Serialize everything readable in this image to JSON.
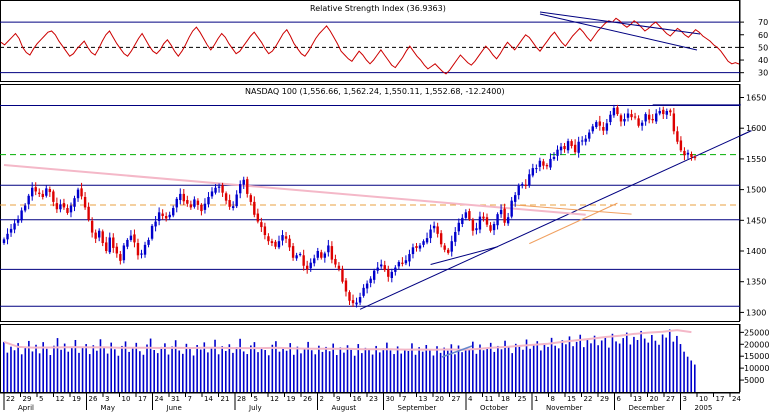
{
  "chart_data": [
    {
      "type": "line",
      "title": "Relative Strength Index (36.9363)",
      "ylim": [
        25,
        78
      ],
      "ticks": [
        {
          "value": 70,
          "label": "70"
        },
        {
          "value": 60,
          "label": "60"
        },
        {
          "value": 50,
          "label": "50"
        },
        {
          "value": 40,
          "label": "40"
        },
        {
          "value": 30,
          "label": "30"
        }
      ],
      "reference_lines": [
        {
          "value": 70,
          "color": "#000080",
          "dash": false
        },
        {
          "value": 50,
          "color": "#000000",
          "dash": true
        },
        {
          "value": 30,
          "color": "#000080",
          "dash": false
        }
      ],
      "series": [
        {
          "color": "#cc0000",
          "values": [
            54,
            52,
            55,
            58,
            61,
            57,
            50,
            46,
            44,
            49,
            53,
            56,
            59,
            62,
            63,
            60,
            55,
            51,
            47,
            43,
            45,
            49,
            52,
            55,
            50,
            46,
            44,
            49,
            55,
            60,
            63,
            58,
            53,
            49,
            45,
            43,
            47,
            52,
            57,
            61,
            56,
            51,
            47,
            45,
            48,
            53,
            56,
            52,
            47,
            43,
            47,
            52,
            58,
            63,
            66,
            62,
            57,
            52,
            48,
            52,
            57,
            61,
            58,
            53,
            49,
            45,
            47,
            51,
            55,
            59,
            62,
            58,
            54,
            49,
            45,
            47,
            51,
            56,
            61,
            64,
            59,
            53,
            49,
            45,
            43,
            47,
            52,
            57,
            61,
            64,
            67,
            63,
            58,
            53,
            47,
            44,
            41,
            39,
            43,
            47,
            44,
            40,
            37,
            40,
            44,
            48,
            44,
            40,
            36,
            34,
            38,
            42,
            47,
            51,
            47,
            43,
            40,
            36,
            33,
            35,
            37,
            34,
            31,
            29,
            32,
            36,
            40,
            44,
            41,
            38,
            36,
            39,
            43,
            47,
            51,
            48,
            44,
            41,
            45,
            50,
            54,
            51,
            48,
            52,
            56,
            60,
            58,
            54,
            50,
            47,
            51,
            55,
            59,
            62,
            58,
            54,
            51,
            55,
            59,
            62,
            65,
            62,
            58,
            55,
            59,
            63,
            66,
            69,
            71,
            70,
            73,
            71,
            68,
            66,
            68,
            71,
            69,
            66,
            63,
            65,
            68,
            70,
            67,
            64,
            61,
            59,
            62,
            65,
            63,
            60,
            58,
            61,
            64,
            62,
            59,
            57,
            55,
            52,
            50,
            47,
            43,
            39,
            37,
            38,
            36.9
          ]
        }
      ]
    },
    {
      "type": "candlestick",
      "title": "NASDAQ 100 (1,556.66, 1,562.24, 1,550.11, 1,552.68, -12.2400)",
      "ylim": [
        1286,
        1672
      ],
      "ticks": [
        {
          "value": 1650,
          "label": "1650"
        },
        {
          "value": 1600,
          "label": "1600"
        },
        {
          "value": 1550,
          "label": "1550"
        },
        {
          "value": 1500,
          "label": "1500"
        },
        {
          "value": 1450,
          "label": "1450"
        },
        {
          "value": 1400,
          "label": "1400"
        },
        {
          "value": 1350,
          "label": "1350"
        },
        {
          "value": 1300,
          "label": "1300"
        }
      ],
      "horizontal_lines": [
        {
          "value": 1637,
          "color": "#000080",
          "dash": false
        },
        {
          "value": 1557,
          "color": "#00b000",
          "dash": true
        },
        {
          "value": 1507,
          "color": "#000080",
          "dash": false
        },
        {
          "value": 1475,
          "color": "#e8a040",
          "dash": true
        },
        {
          "value": 1451,
          "color": "#000080",
          "dash": false
        },
        {
          "value": 1370,
          "color": "#000080",
          "dash": false
        },
        {
          "value": 1310,
          "color": "#000080",
          "dash": false
        }
      ],
      "series": [
        {
          "name": "close",
          "values": [
            1419,
            1428,
            1436,
            1445,
            1452,
            1466,
            1474,
            1490,
            1503,
            1497,
            1493,
            1488,
            1502,
            1496,
            1480,
            1468,
            1476,
            1471,
            1462,
            1474,
            1486,
            1500,
            1489,
            1471,
            1451,
            1430,
            1420,
            1433,
            1413,
            1400,
            1422,
            1405,
            1396,
            1384,
            1409,
            1418,
            1425,
            1414,
            1393,
            1396,
            1410,
            1418,
            1441,
            1448,
            1463,
            1457,
            1453,
            1459,
            1470,
            1485,
            1493,
            1481,
            1477,
            1471,
            1484,
            1475,
            1465,
            1477,
            1488,
            1497,
            1503,
            1505,
            1495,
            1482,
            1472,
            1473,
            1492,
            1509,
            1516,
            1493,
            1480,
            1459,
            1448,
            1439,
            1426,
            1416,
            1413,
            1407,
            1416,
            1426,
            1420,
            1406,
            1389,
            1393,
            1395,
            1376,
            1370,
            1381,
            1388,
            1400,
            1389,
            1396,
            1409,
            1386,
            1378,
            1371,
            1350,
            1334,
            1319,
            1315,
            1316,
            1325,
            1340,
            1347,
            1355,
            1368,
            1373,
            1378,
            1369,
            1358,
            1366,
            1373,
            1382,
            1379,
            1385,
            1395,
            1406,
            1405,
            1409,
            1416,
            1421,
            1435,
            1441,
            1428,
            1411,
            1402,
            1397,
            1416,
            1431,
            1446,
            1454,
            1463,
            1452,
            1433,
            1437,
            1456,
            1453,
            1443,
            1433,
            1444,
            1460,
            1467,
            1446,
            1455,
            1482,
            1491,
            1506,
            1509,
            1506,
            1525,
            1535,
            1535,
            1547,
            1539,
            1538,
            1550,
            1553,
            1565,
            1570,
            1566,
            1579,
            1571,
            1561,
            1578,
            1580,
            1583,
            1593,
            1603,
            1610,
            1604,
            1596,
            1608,
            1622,
            1633,
            1623,
            1611,
            1615,
            1624,
            1618,
            1618,
            1604,
            1609,
            1623,
            1614,
            1613,
            1624,
            1628,
            1623,
            1628,
            1626,
            1595,
            1578,
            1564,
            1556,
            1560,
            1553,
            1552.68
          ]
        }
      ],
      "trend_lines": [
        {
          "from": [
            101,
            1305
          ],
          "to": [
            212,
            1596
          ],
          "color": "#000080"
        },
        {
          "from": [
            0,
            1540
          ],
          "to": [
            165,
            1459
          ],
          "color": "#f4b8c8"
        },
        {
          "from": [
            121,
            1378
          ],
          "to": [
            140,
            1407
          ],
          "color": "#000080"
        },
        {
          "from": [
            149,
            1412
          ],
          "to": [
            174,
            1478
          ],
          "color": "#f0a060"
        },
        {
          "from": [
            145,
            1475
          ],
          "to": [
            178,
            1460
          ],
          "color": "#f0a060"
        },
        {
          "from": [
            184,
            1638
          ],
          "to": [
            209,
            1638
          ],
          "color": "#000080"
        }
      ]
    },
    {
      "type": "bar",
      "title": "",
      "ylim": [
        0,
        28500
      ],
      "ticks": [
        {
          "value": 25000,
          "label": "25000"
        },
        {
          "value": 20000,
          "label": "20000"
        },
        {
          "value": 15000,
          "label": "15000"
        },
        {
          "value": 10000,
          "label": "10000"
        },
        {
          "value": 5000,
          "label": "5000"
        }
      ],
      "x_axis": {
        "day_labels": [
          "22",
          "29",
          "5",
          "12",
          "19",
          "26",
          "3",
          "10",
          "17",
          "24",
          "31",
          "7",
          "14",
          "21",
          "28",
          "5",
          "12",
          "19",
          "26",
          "2",
          "9",
          "16",
          "23",
          "30",
          "7",
          "13",
          "20",
          "27",
          "4",
          "11",
          "18",
          "25",
          "1",
          "8",
          "15",
          "22",
          "29",
          "6",
          "13",
          "20",
          "27",
          "3",
          "10",
          "17",
          "24"
        ],
        "month_labels": [
          "April",
          "May",
          "June",
          "July",
          "August",
          "September",
          "October",
          "November",
          "December",
          "2005"
        ]
      },
      "series": [
        {
          "name": "volume",
          "values": [
            21000,
            16500,
            19000,
            17500,
            20500,
            15800,
            18600,
            21400,
            17000,
            19800,
            16200,
            20900,
            18100,
            15500,
            19400,
            22600,
            17700,
            20300,
            16900,
            19000,
            21800,
            16400,
            18700,
            20100,
            15900,
            19600,
            17300,
            22100,
            18500,
            16100,
            20700,
            17900,
            15200,
            19300,
            21200,
            16800,
            18300,
            20600,
            17100,
            15600,
            19900,
            22400,
            17600,
            16300,
            18900,
            20400,
            15700,
            19100,
            21700,
            17400,
            16000,
            20200,
            18000,
            15300,
            19700,
            17800,
            20800,
            16600,
            18400,
            21900,
            15800,
            19200,
            17200,
            20000,
            16400,
            18800,
            22300,
            17000,
            15900,
            19500,
            20900,
            16700,
            18200,
            17600,
            15400,
            19800,
            21300,
            16900,
            18600,
            17300,
            20500,
            15600,
            19000,
            16200,
            18100,
            21000,
            17500,
            15800,
            19400,
            16800,
            18900,
            17100,
            20300,
            15500,
            18700,
            16500,
            19600,
            17700,
            15200,
            20100,
            16300,
            18500,
            17900,
            15700,
            19300,
            16600,
            18300,
            20700,
            17400,
            15900,
            19100,
            16100,
            18000,
            17200,
            20400,
            15600,
            18800,
            16900,
            19700,
            17800,
            15300,
            19200,
            16400,
            18600,
            17300,
            20000,
            15800,
            19500,
            16700,
            18400,
            17600,
            21100,
            16000,
            19900,
            17500,
            18200,
            20600,
            16800,
            19300,
            17900,
            21500,
            18700,
            16300,
            20200,
            19000,
            17700,
            22000,
            18100,
            19800,
            21300,
            17400,
            20500,
            18900,
            22700,
            19400,
            18300,
            21700,
            20000,
            23300,
            19200,
            21000,
            24000,
            18800,
            22200,
            20400,
            23600,
            19600,
            21600,
            22900,
            18600,
            24400,
            21200,
            20300,
            22600,
            24900,
            19900,
            23100,
            21800,
            25600,
            22400,
            20700,
            23900,
            21500,
            19800,
            24100,
            22800,
            26200,
            21100,
            23500,
            20100,
            16900,
            14800,
            13200,
            11500
          ]
        }
      ]
    }
  ]
}
